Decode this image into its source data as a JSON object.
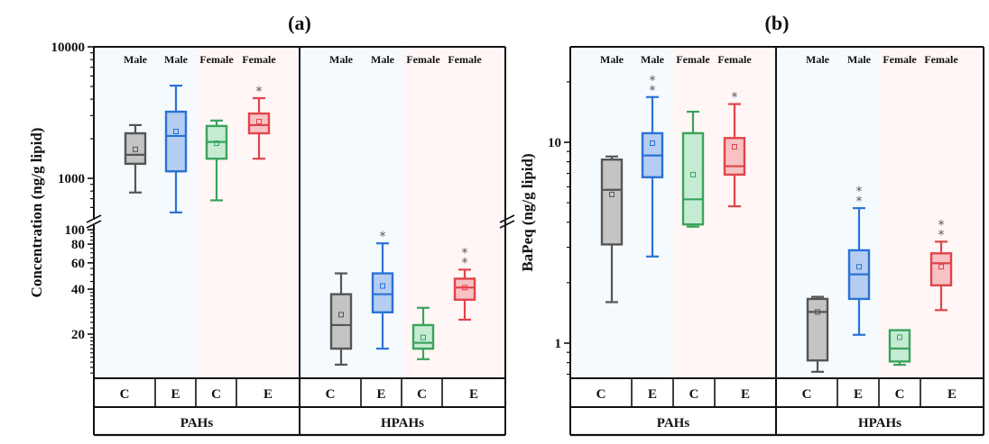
{
  "chart_data": [
    {
      "type": "box",
      "title": "(a)",
      "ylabel": "Concentration (ng/g lipid)",
      "yscale": "log-broken",
      "ylim_upper": [
        500,
        10000
      ],
      "ylim_lower": [
        10,
        100
      ],
      "yticks_upper": [
        "1000",
        "10000"
      ],
      "yticks_lower": [
        "20",
        "40",
        "60",
        "80",
        "100"
      ],
      "groups": [
        {
          "name": "PAHs",
          "segment": "upper",
          "boxes": [
            {
              "sex": "Male",
              "cat": "C",
              "color": "gray",
              "min": 780,
              "q1": 1290,
              "median": 1510,
              "q3": 2200,
              "max": 2540,
              "mean": 1660,
              "sig": ""
            },
            {
              "sex": "Male",
              "cat": "E",
              "color": "blue",
              "min": 550,
              "q1": 1130,
              "median": 2100,
              "q3": 3210,
              "max": 5070,
              "mean": 2270,
              "sig": ""
            },
            {
              "sex": "Female",
              "cat": "C",
              "color": "green",
              "min": 680,
              "q1": 1410,
              "median": 1890,
              "q3": 2500,
              "max": 2750,
              "mean": 1850,
              "sig": ""
            },
            {
              "sex": "Female",
              "cat": "E",
              "color": "red",
              "min": 1410,
              "q1": 2200,
              "median": 2540,
              "q3": 3110,
              "max": 4070,
              "mean": 2700,
              "sig": "*"
            }
          ]
        },
        {
          "name": "HPAHs",
          "segment": "lower",
          "boxes": [
            {
              "sex": "Male",
              "cat": "C",
              "color": "gray",
              "min": 12.5,
              "q1": 16,
              "median": 23,
              "q3": 37,
              "max": 51,
              "mean": 27,
              "sig": ""
            },
            {
              "sex": "Male",
              "cat": "E",
              "color": "blue",
              "min": 16,
              "q1": 28,
              "median": 37,
              "q3": 51,
              "max": 81,
              "mean": 42,
              "sig": "*"
            },
            {
              "sex": "Female",
              "cat": "C",
              "color": "green",
              "min": 13.6,
              "q1": 16,
              "median": 17.5,
              "q3": 23,
              "max": 30,
              "mean": 19,
              "sig": ""
            },
            {
              "sex": "Female",
              "cat": "E",
              "color": "red",
              "min": 25,
              "q1": 34,
              "median": 41,
              "q3": 47,
              "max": 54,
              "mean": 41,
              "sig": "**"
            }
          ]
        }
      ]
    },
    {
      "type": "box",
      "title": "(b)",
      "ylabel": "BaPeq (ng/g lipid)",
      "yscale": "log",
      "ylim": [
        0.65,
        30
      ],
      "yticks": [
        "1",
        "10"
      ],
      "groups": [
        {
          "name": "PAHs",
          "boxes": [
            {
              "sex": "Male",
              "cat": "C",
              "color": "gray",
              "min": 1.6,
              "q1": 3.1,
              "median": 5.8,
              "q3": 8.2,
              "max": 8.5,
              "mean": 5.5,
              "sig": ""
            },
            {
              "sex": "Male",
              "cat": "E",
              "color": "blue",
              "min": 2.7,
              "q1": 6.7,
              "median": 8.6,
              "q3": 11.1,
              "max": 16.8,
              "mean": 9.9,
              "sig": "**"
            },
            {
              "sex": "Female",
              "cat": "C",
              "color": "green",
              "min": 3.8,
              "q1": 3.9,
              "median": 5.2,
              "q3": 11.1,
              "max": 14.2,
              "mean": 6.9,
              "sig": ""
            },
            {
              "sex": "Female",
              "cat": "E",
              "color": "red",
              "min": 4.8,
              "q1": 6.9,
              "median": 7.6,
              "q3": 10.5,
              "max": 15.5,
              "mean": 9.5,
              "sig": "*"
            }
          ]
        },
        {
          "name": "HPAHs",
          "boxes": [
            {
              "sex": "Male",
              "cat": "C",
              "color": "gray",
              "min": 0.72,
              "q1": 0.82,
              "median": 1.43,
              "q3": 1.66,
              "max": 1.7,
              "mean": 1.43,
              "sig": ""
            },
            {
              "sex": "Male",
              "cat": "E",
              "color": "blue",
              "min": 1.1,
              "q1": 1.66,
              "median": 2.2,
              "q3": 2.9,
              "max": 4.7,
              "mean": 2.4,
              "sig": "**"
            },
            {
              "sex": "Female",
              "cat": "C",
              "color": "green",
              "min": 0.78,
              "q1": 0.81,
              "median": 0.94,
              "q3": 1.16,
              "max": 1.16,
              "mean": 1.07,
              "sig": ""
            },
            {
              "sex": "Female",
              "cat": "E",
              "color": "red",
              "min": 1.46,
              "q1": 1.94,
              "median": 2.5,
              "q3": 2.8,
              "max": 3.2,
              "mean": 2.4,
              "sig": "**"
            }
          ]
        }
      ]
    }
  ],
  "colors": {
    "gray": {
      "stroke": "#555555",
      "fill": "#c4c4c4"
    },
    "blue": {
      "stroke": "#2a72d4",
      "fill": "#b5cdf2"
    },
    "green": {
      "stroke": "#3aa35c",
      "fill": "#c6ebd3"
    },
    "red": {
      "stroke": "#e0444a",
      "fill": "#f8c2c4"
    },
    "male_bg": "#f5faff",
    "female_bg": "#fff6f5"
  }
}
